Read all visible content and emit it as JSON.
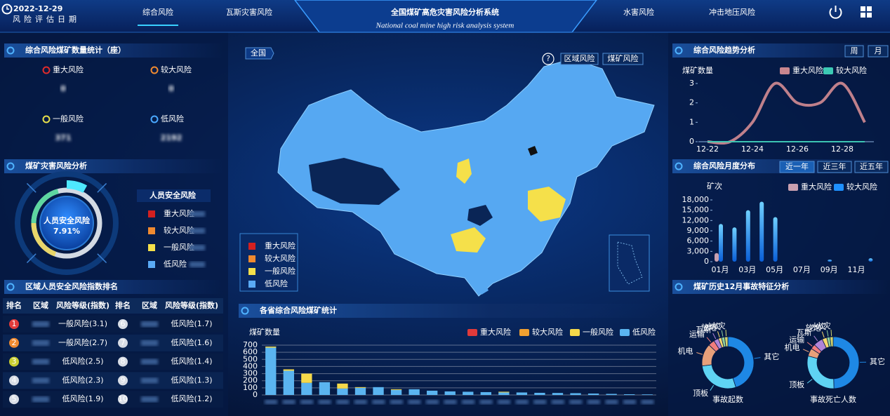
{
  "header": {
    "date": "2022-12-29",
    "date_label": "风险评估日期",
    "tabs_left": [
      "综合风险",
      "瓦斯灾害风险"
    ],
    "title": "全国煤矿高危灾害风险分析系统",
    "subtitle": "National coal mine high risk analysis system",
    "tabs_right": [
      "水害风险",
      "冲击地压风险"
    ]
  },
  "counts": {
    "title": "综合风险煤矿数量统计（座）",
    "items": [
      {
        "label": "重大风险",
        "value": 0,
        "color": "#e02b2b"
      },
      {
        "label": "较大风险",
        "value": 0,
        "color": "#f08a30"
      },
      {
        "label": "一般风险",
        "value": 371,
        "color": "#e8e04a"
      },
      {
        "label": "低风险",
        "value": 2192,
        "color": "#4aa8ff"
      }
    ]
  },
  "disaster": {
    "title": "煤矿灾害风险分析",
    "gauge_label": "人员安全风险",
    "gauge_value": 7.91,
    "gauge_value_label": "7.91%",
    "legend_title": "人员安全风险",
    "legend": [
      {
        "label": "重大风险",
        "color": "#d42020"
      },
      {
        "label": "较大风险",
        "color": "#f08a30"
      },
      {
        "label": "一般风险",
        "color": "#f5e04a"
      },
      {
        "label": "低风险",
        "color": "#5aaaf5"
      }
    ]
  },
  "ranking": {
    "title": "区域人员安全风险指数排名",
    "headers": [
      "排名",
      "区域",
      "风险等级(指数)",
      "排名",
      "区域",
      "风险等级(指数)"
    ],
    "rows": [
      {
        "rank": 1,
        "level": "一般风险(3.1)"
      },
      {
        "rank": 2,
        "level": "一般风险(2.7)"
      },
      {
        "rank": 3,
        "level": "低风险(2.5)"
      },
      {
        "rank": 4,
        "level": "低风险(2.3)"
      },
      {
        "rank": 5,
        "level": "低风险(1.9)"
      },
      {
        "rank": 6,
        "level": "低风险(1.7)"
      },
      {
        "rank": 7,
        "level": "低风险(1.6)"
      },
      {
        "rank": 8,
        "level": "低风险(1.4)"
      },
      {
        "rank": 9,
        "level": "低风险(1.3)"
      },
      {
        "rank": 10,
        "level": "低风险(1.2)"
      }
    ]
  },
  "map": {
    "breadcrumb": "全国",
    "help": "?",
    "buttons": [
      "区域风险",
      "煤矿风险"
    ],
    "legend": [
      {
        "label": "重大风险",
        "color": "#d42020"
      },
      {
        "label": "较大风险",
        "color": "#f08a30"
      },
      {
        "label": "一般风险",
        "color": "#f5e04a"
      },
      {
        "label": "低风险",
        "color": "#5aaaf5"
      }
    ]
  },
  "accidents_title": "煤矿历史12月事故特征分析",
  "chart_data": [
    {
      "type": "line",
      "title": "综合风险趋势分析",
      "buttons": [
        "周",
        "月"
      ],
      "y_label": "煤矿数量",
      "categories": [
        "12-22",
        null,
        "12-24",
        null,
        "12-26",
        null,
        "12-28",
        null
      ],
      "series": [
        {
          "name": "重大风险",
          "color": "#c9868f",
          "values": [
            0,
            0,
            1,
            3,
            2,
            2,
            3,
            1
          ]
        },
        {
          "name": "较大风险",
          "color": "#3cc9b4",
          "values": [
            0,
            0,
            0,
            0,
            0,
            0,
            0,
            0
          ]
        }
      ],
      "ylim": [
        0,
        3
      ],
      "yticks": [
        0,
        1,
        2,
        3
      ]
    },
    {
      "type": "bar",
      "title": "综合风险月度分布",
      "buttons": [
        "近一年",
        "近三年",
        "近五年"
      ],
      "y_label": "矿次",
      "categories": [
        "01月",
        null,
        "03月",
        null,
        "05月",
        null,
        "07月",
        null,
        "09月",
        null,
        "11月",
        null
      ],
      "series": [
        {
          "name": "重大风险",
          "color": "#c9a0b0",
          "values": [
            2500,
            0,
            0,
            0,
            0,
            0,
            0,
            0,
            0,
            0,
            0,
            0
          ]
        },
        {
          "name": "较大风险",
          "color": "#1e90ff",
          "values": [
            11000,
            10000,
            15000,
            17500,
            13000,
            0,
            0,
            0,
            600,
            0,
            0,
            1000
          ]
        }
      ],
      "ylim": [
        0,
        18000
      ],
      "yticks": [
        0,
        {
          "value": 3000,
          "label": "3,000"
        },
        {
          "value": 6000,
          "label": "6,000"
        },
        {
          "value": 9000,
          "label": "9,000"
        },
        {
          "value": 12000,
          "label": "12,000"
        },
        {
          "value": 15000,
          "label": "15,000"
        },
        {
          "value": 18000,
          "label": "18,000"
        }
      ]
    },
    {
      "type": "stacked_bar",
      "title": "各省综合风险煤矿统计",
      "y_label": "煤矿数量",
      "categories": [
        null,
        null,
        null,
        null,
        null,
        null,
        null,
        null,
        null,
        null,
        null,
        null,
        null,
        null,
        null,
        null,
        null,
        null,
        null,
        null,
        null,
        null
      ],
      "series": [
        {
          "name": "重大风险",
          "color": "#e03a3a",
          "values": [
            0,
            0,
            0,
            0,
            0,
            0,
            0,
            0,
            0,
            0,
            0,
            0,
            0,
            0,
            0,
            0,
            0,
            0,
            0,
            0,
            0,
            0
          ]
        },
        {
          "name": "较大风险",
          "color": "#f0a030",
          "values": [
            0,
            0,
            0,
            0,
            0,
            0,
            0,
            0,
            0,
            0,
            0,
            0,
            0,
            0,
            0,
            0,
            0,
            0,
            0,
            0,
            0,
            0
          ]
        },
        {
          "name": "一般风险",
          "color": "#f5d94a",
          "values": [
            15,
            20,
            130,
            0,
            70,
            10,
            0,
            10,
            0,
            0,
            0,
            0,
            0,
            10,
            0,
            0,
            0,
            0,
            0,
            0,
            0,
            0
          ]
        },
        {
          "name": "低风险",
          "color": "#5ab4f0",
          "values": [
            665,
            340,
            170,
            180,
            90,
            100,
            110,
            70,
            80,
            60,
            50,
            45,
            40,
            35,
            35,
            30,
            28,
            25,
            20,
            15,
            10,
            8
          ]
        }
      ],
      "ylim": [
        0,
        700
      ],
      "yticks": [
        0,
        100,
        200,
        300,
        400,
        500,
        600,
        700
      ],
      "grid": true
    },
    {
      "type": "donut",
      "title": "事故起数",
      "categories": [
        "其它",
        "顶板",
        "机电",
        "运输",
        "瓦斯",
        "放炮",
        "水灾",
        "火灾"
      ],
      "colors": [
        "#1e88e5",
        "#5fd3f3",
        "#e8a07a",
        "#f27d7d",
        "#b084d8",
        "#f5d76e",
        "#8fd19e",
        "#d6d66e"
      ],
      "values": [
        45,
        28,
        14,
        4,
        3,
        2,
        2,
        2
      ]
    },
    {
      "type": "donut",
      "title": "事故死亡人数",
      "categories": [
        "其它",
        "顶板",
        "机电",
        "运输",
        "瓦斯",
        "放炮",
        "水灾",
        "火灾"
      ],
      "colors": [
        "#1e88e5",
        "#5fd3f3",
        "#e8a07a",
        "#f27d7d",
        "#b084d8",
        "#f5d76e",
        "#8fd19e",
        "#d6d66e"
      ],
      "values": [
        50,
        30,
        5,
        3,
        6,
        3,
        2,
        2
      ]
    }
  ]
}
